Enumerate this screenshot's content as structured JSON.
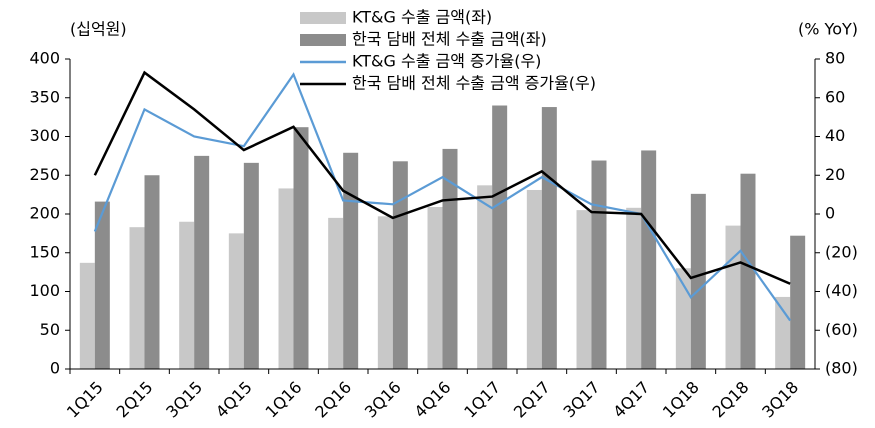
{
  "chart_data": {
    "type": "bar-line",
    "y_label": "(십억원)",
    "y2_label": "(% YoY)",
    "categories": [
      "1Q15",
      "2Q15",
      "3Q15",
      "4Q15",
      "1Q16",
      "2Q16",
      "3Q16",
      "4Q16",
      "1Q17",
      "2Q17",
      "3Q17",
      "4Q17",
      "1Q18",
      "2Q18",
      "3Q18"
    ],
    "series": [
      {
        "name": "KT&G 수출 금액(좌)",
        "type": "bar",
        "color": "#c8c8c8",
        "axis": "y",
        "values": [
          137,
          183,
          190,
          175,
          233,
          195,
          197,
          209,
          237,
          231,
          205,
          208,
          130,
          185,
          93
        ]
      },
      {
        "name": "한국 담배 전체 수출 금액(좌)",
        "type": "bar",
        "color": "#8c8c8c",
        "axis": "y",
        "values": [
          216,
          250,
          275,
          266,
          312,
          279,
          268,
          284,
          340,
          338,
          269,
          282,
          226,
          252,
          172
        ]
      },
      {
        "name": "KT&G 수출 금액 증가율(우)",
        "type": "line",
        "color": "#5b9bd5",
        "axis": "y2",
        "values": [
          -9,
          54,
          40,
          35,
          72,
          7,
          5,
          19,
          3,
          19,
          5,
          0,
          -43,
          -19,
          -55
        ]
      },
      {
        "name": "한국 담배 전체 수출 금액 증가율(우)",
        "type": "line",
        "color": "#000000",
        "axis": "y2",
        "values": [
          20,
          73,
          54,
          33,
          45,
          12,
          -2,
          7,
          9,
          22,
          1,
          0,
          -33,
          -25,
          -36
        ]
      }
    ],
    "ylim": [
      0,
      400
    ],
    "yticks": [
      0,
      50,
      100,
      150,
      200,
      250,
      300,
      350,
      400
    ],
    "y2lim": [
      -80,
      80
    ],
    "y2ticks": [
      {
        "value": -80,
        "label": "(80)"
      },
      {
        "value": -60,
        "label": "(60)"
      },
      {
        "value": -40,
        "label": "(40)"
      },
      {
        "value": -20,
        "label": "(20)"
      },
      0,
      20,
      40,
      60,
      80
    ],
    "grid": false,
    "legend": "top"
  }
}
